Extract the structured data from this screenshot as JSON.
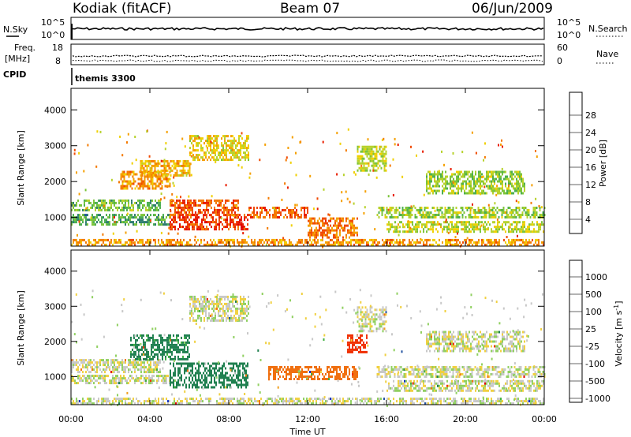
{
  "header": {
    "station": "Kodiak (fitACF)",
    "beam": "Beam 07",
    "date": "06/Jun/2009"
  },
  "nsky_panel": {
    "left_label": "N.Sky",
    "right_label": "N.Search",
    "left_ticks": [
      "10^5",
      "10^0"
    ],
    "right_ticks": [
      "10^5",
      "10^0"
    ]
  },
  "freq_panel": {
    "left_label_1": "Freq.",
    "left_label_2": "[MHz]",
    "left_ticks": [
      "18",
      "8"
    ],
    "right_label": "Nave",
    "right_ticks": [
      "60",
      "0"
    ]
  },
  "cpid": {
    "label": "CPID",
    "value": "themis 3300"
  },
  "xaxis": {
    "label": "Time UT",
    "ticks": [
      "00:00",
      "04:00",
      "08:00",
      "12:00",
      "16:00",
      "20:00",
      "00:00"
    ]
  },
  "chart_data": [
    {
      "type": "heatmap",
      "title": "",
      "xlabel": "Time UT",
      "ylabel": "Slant Range [km]",
      "x_range_hours": [
        0,
        24
      ],
      "ylim": [
        200,
        4600
      ],
      "y_ticks": [
        "4000",
        "3000",
        "2000",
        "1000"
      ],
      "colorbar": {
        "label": "Power [dB]",
        "tick_labels": [
          "28",
          "24",
          "20",
          "16",
          "12",
          "8",
          "4"
        ],
        "range": [
          0,
          30
        ],
        "colors": [
          "#0000ff",
          "#1f4ea0",
          "#2e7d6e",
          "#4caf50",
          "#7cc43a",
          "#b7d22c",
          "#f0d000",
          "#f5a000",
          "#f47a00",
          "#f04a00",
          "#e81e00",
          "#e00000"
        ]
      },
      "echo_regions": [
        {
          "t0": 0.0,
          "t1": 24.0,
          "r0": 220,
          "r1": 400,
          "value": 20
        },
        {
          "t0": 0.0,
          "t1": 4.5,
          "r0": 1200,
          "r1": 1500,
          "value": 10
        },
        {
          "t0": 0.0,
          "t1": 5.0,
          "r0": 800,
          "r1": 1100,
          "value": 8
        },
        {
          "t0": 2.5,
          "t1": 5.0,
          "r0": 1800,
          "r1": 2300,
          "value": 20
        },
        {
          "t0": 3.5,
          "t1": 6.0,
          "r0": 2200,
          "r1": 2600,
          "value": 18
        },
        {
          "t0": 5.0,
          "t1": 9.0,
          "r0": 650,
          "r1": 1100,
          "value": 26
        },
        {
          "t0": 5.0,
          "t1": 8.5,
          "r0": 1100,
          "r1": 1500,
          "value": 24
        },
        {
          "t0": 6.0,
          "t1": 9.0,
          "r0": 2600,
          "r1": 3300,
          "value": 16
        },
        {
          "t0": 9.0,
          "t1": 12.0,
          "r0": 1000,
          "r1": 1300,
          "value": 24
        },
        {
          "t0": 12.0,
          "t1": 14.5,
          "r0": 450,
          "r1": 1000,
          "value": 22
        },
        {
          "t0": 14.5,
          "t1": 16.0,
          "r0": 2300,
          "r1": 3000,
          "value": 14
        },
        {
          "t0": 15.5,
          "t1": 24.0,
          "r0": 1000,
          "r1": 1300,
          "value": 12
        },
        {
          "t0": 16.0,
          "t1": 24.0,
          "r0": 600,
          "r1": 900,
          "value": 14
        },
        {
          "t0": 18.0,
          "t1": 23.0,
          "r0": 1700,
          "r1": 2300,
          "value": 12
        }
      ]
    },
    {
      "type": "heatmap",
      "title": "",
      "xlabel": "Time UT",
      "ylabel": "Slant Range [km]",
      "x_range_hours": [
        0,
        24
      ],
      "ylim": [
        200,
        4600
      ],
      "y_ticks": [
        "4000",
        "3000",
        "2000",
        "1000"
      ],
      "colorbar": {
        "label": "Velocity [m s^-1]",
        "tick_labels": [
          "1000",
          "500",
          "100",
          "25",
          "-25",
          "-100",
          "-500",
          "-1000"
        ],
        "colors": [
          "#1030c0",
          "#2050a0",
          "#208050",
          "#40b040",
          "#90d060",
          "#c8c8c8",
          "#c8c8c8",
          "#f0d040",
          "#f0a020",
          "#f07010",
          "#f03000",
          "#e00000"
        ]
      },
      "echo_regions": [
        {
          "t0": 0.0,
          "t1": 24.0,
          "r0": 220,
          "r1": 400,
          "value": 0
        },
        {
          "t0": 0.0,
          "t1": 4.5,
          "r0": 1100,
          "r1": 1500,
          "value": 0
        },
        {
          "t0": 0.0,
          "t1": 5.0,
          "r0": 800,
          "r1": 1050,
          "value": 0
        },
        {
          "t0": 3.0,
          "t1": 6.0,
          "r0": 1500,
          "r1": 2200,
          "value": 150
        },
        {
          "t0": 5.0,
          "t1": 9.0,
          "r0": 700,
          "r1": 1400,
          "value": 200
        },
        {
          "t0": 6.0,
          "t1": 9.0,
          "r0": 2600,
          "r1": 3300,
          "value": 0
        },
        {
          "t0": 10.0,
          "t1": 14.5,
          "r0": 900,
          "r1": 1300,
          "value": -200
        },
        {
          "t0": 14.0,
          "t1": 15.0,
          "r0": 1700,
          "r1": 2200,
          "value": -400
        },
        {
          "t0": 14.5,
          "t1": 16.0,
          "r0": 2300,
          "r1": 3000,
          "value": 0
        },
        {
          "t0": 15.5,
          "t1": 24.0,
          "r0": 1000,
          "r1": 1300,
          "value": 0
        },
        {
          "t0": 16.0,
          "t1": 24.0,
          "r0": 600,
          "r1": 900,
          "value": 0
        },
        {
          "t0": 18.0,
          "t1": 23.0,
          "r0": 1700,
          "r1": 2300,
          "value": 0
        }
      ]
    }
  ]
}
